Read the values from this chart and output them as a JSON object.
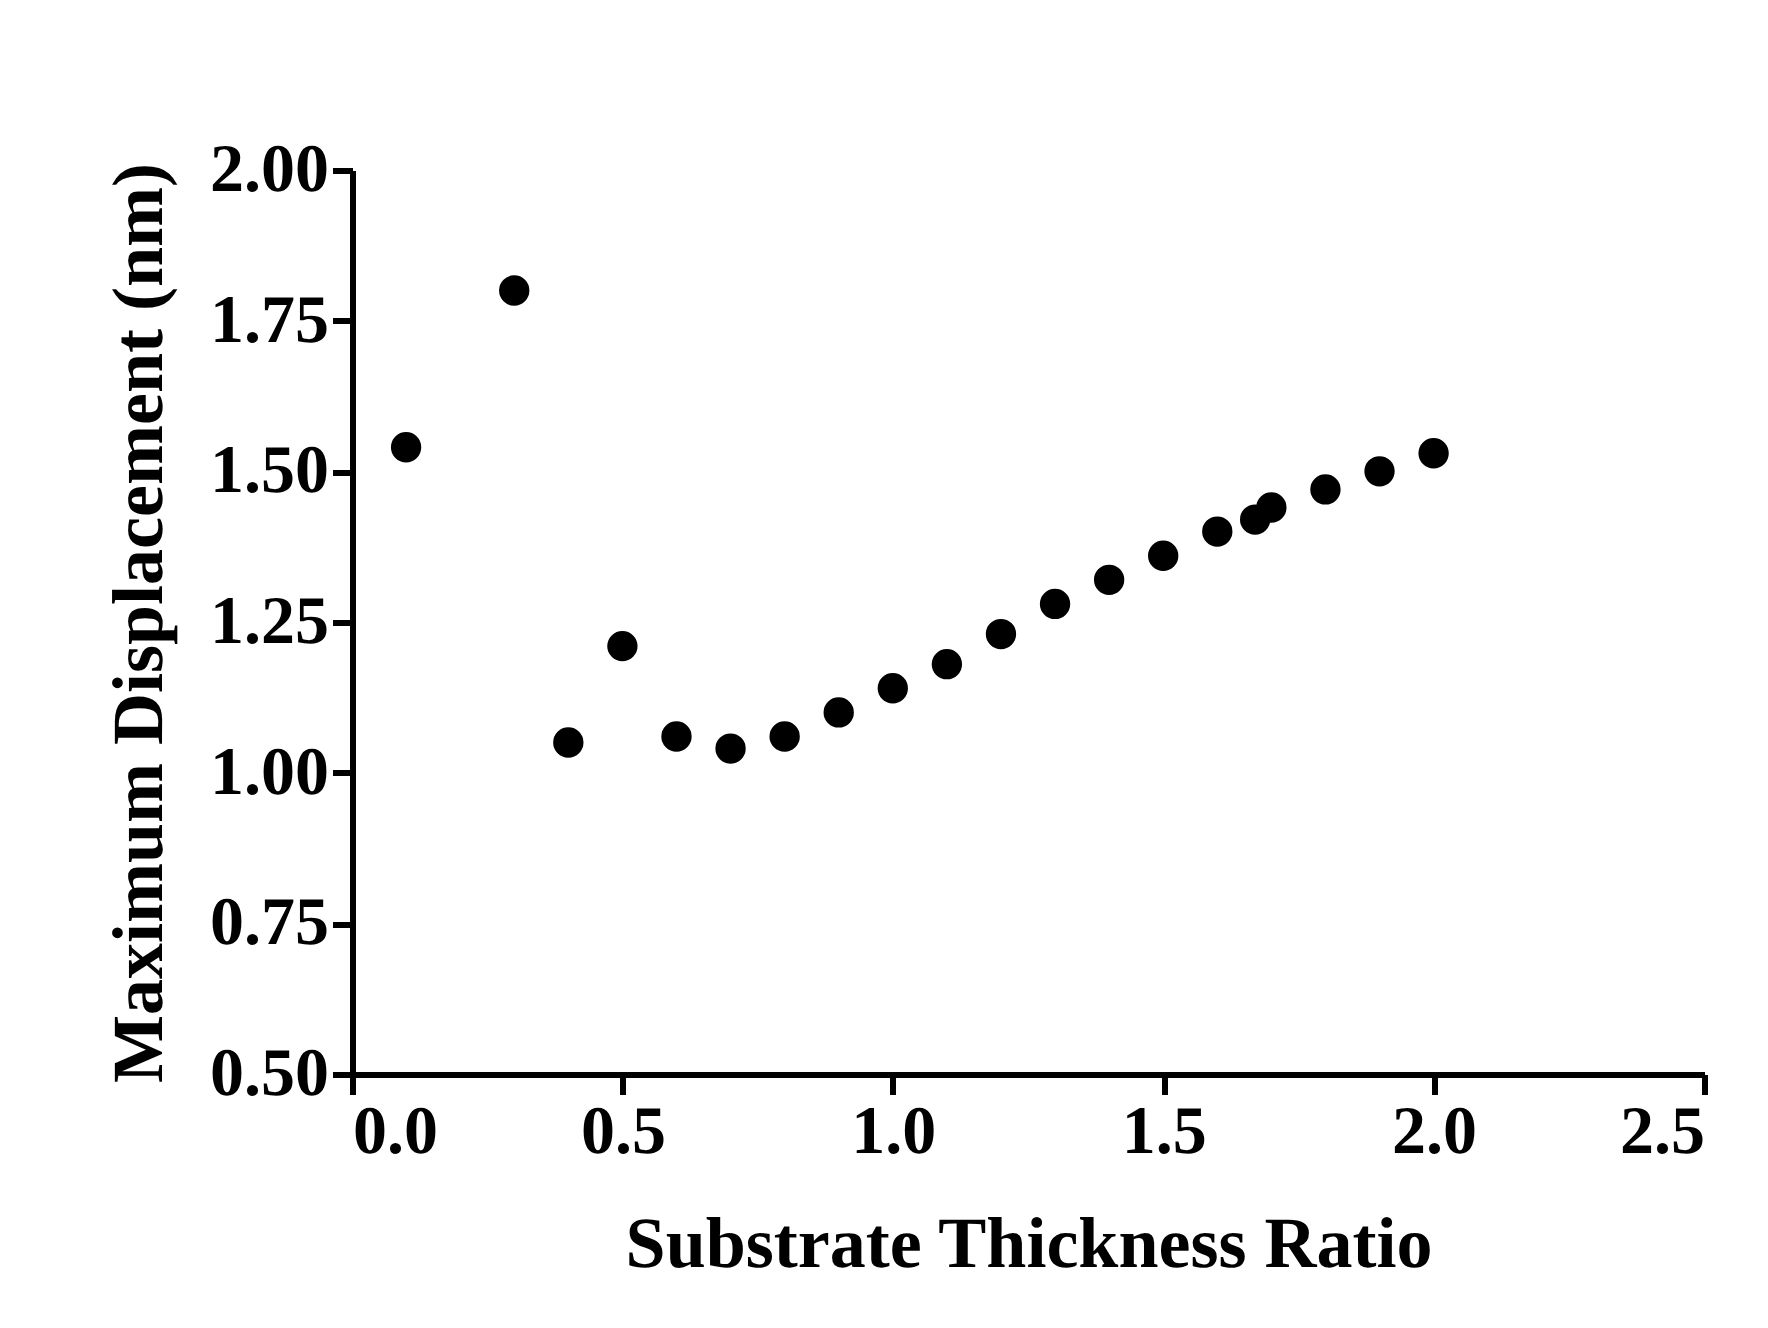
{
  "chart_data": {
    "type": "scatter",
    "xlabel": "Substrate Thickness Ratio",
    "ylabel": "Maximum Displacement (nm)",
    "x": [
      0.1,
      0.3,
      0.4,
      0.5,
      0.6,
      0.7,
      0.8,
      0.9,
      1.0,
      1.1,
      1.2,
      1.3,
      1.4,
      1.5,
      1.6,
      1.67,
      1.7,
      1.8,
      1.9,
      2.0
    ],
    "series": [
      {
        "color": "#000000",
        "values": [
          1.54,
          1.8,
          1.05,
          1.21,
          1.06,
          1.04,
          1.06,
          1.1,
          1.14,
          1.18,
          1.23,
          1.28,
          1.32,
          1.36,
          1.4,
          1.42,
          1.44,
          1.47,
          1.5,
          1.53
        ]
      }
    ],
    "xlim": [
      0,
      2.5
    ],
    "ylim": [
      0.5,
      2.0
    ],
    "xticks": [
      {
        "value": 0,
        "label": "0.0"
      },
      {
        "value": 0.5,
        "label": "0.5"
      },
      {
        "value": 1,
        "label": "1.0"
      },
      {
        "value": 1.5,
        "label": "1.5"
      },
      {
        "value": 2,
        "label": "2.0"
      },
      {
        "value": 2.5,
        "label": "2.5"
      }
    ],
    "yticks": [
      {
        "value": 0.5,
        "label": "0.50"
      },
      {
        "value": 0.75,
        "label": "0.75"
      },
      {
        "value": 1,
        "label": "1.00"
      },
      {
        "value": 1.25,
        "label": "1.25"
      },
      {
        "value": 1.5,
        "label": "1.50"
      },
      {
        "value": 1.75,
        "label": "1.75"
      },
      {
        "value": 2,
        "label": "2.00"
      }
    ],
    "grid": false,
    "marker": "circle"
  }
}
